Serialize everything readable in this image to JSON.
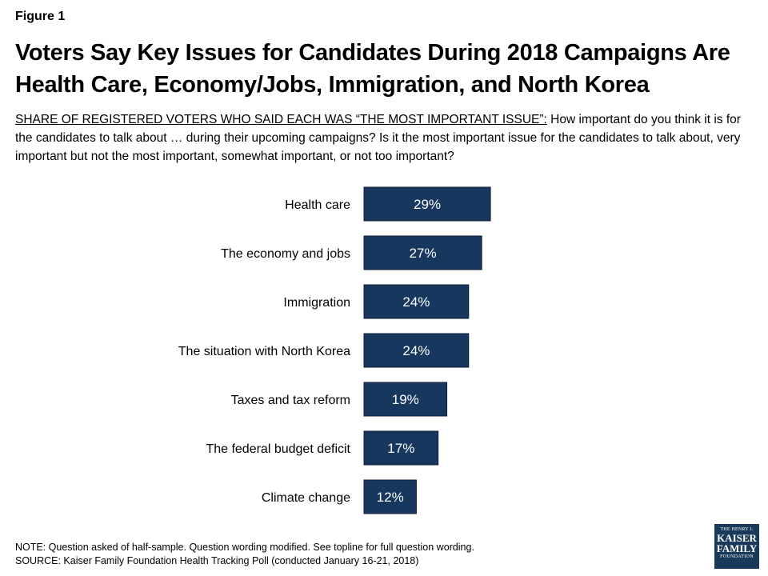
{
  "figure_label": "Figure 1",
  "title": "Voters Say Key Issues for Candidates During 2018 Campaigns Are Health Care, Economy/Jobs, Immigration, and North Korea",
  "subtitle": {
    "lead": "SHARE OF REGISTERED VOTERS WHO SAID EACH WAS “THE MOST IMPORTANT ISSUE”:",
    "question": "How important do you think it is for the candidates to talk about … during their upcoming campaigns? Is it the most important issue for the candidates to talk about, very important but not the most important, somewhat important, or not too important?"
  },
  "chart_data": {
    "type": "bar",
    "orientation": "horizontal",
    "categories": [
      "Health care",
      "The economy and jobs",
      "Immigration",
      "The situation with North Korea",
      "Taxes and tax reform",
      "The federal budget deficit",
      "Climate change"
    ],
    "values": [
      29,
      27,
      24,
      24,
      19,
      17,
      12
    ],
    "value_labels": [
      "29%",
      "27%",
      "24%",
      "24%",
      "19%",
      "17%",
      "12%"
    ],
    "bar_color": "#17375e",
    "label_color": "#ffffff",
    "grid": false,
    "legend": "none"
  },
  "notes": {
    "note": "NOTE: Question asked of half-sample. Question wording modified. See topline for full question wording.",
    "source": "SOURCE: Kaiser Family Foundation Health Tracking Poll (conducted January 16-21, 2018)"
  },
  "logo": {
    "line1": "THE HENRY J.",
    "line2": "KAISER",
    "line3": "FAMILY",
    "line4": "FOUNDATION"
  }
}
